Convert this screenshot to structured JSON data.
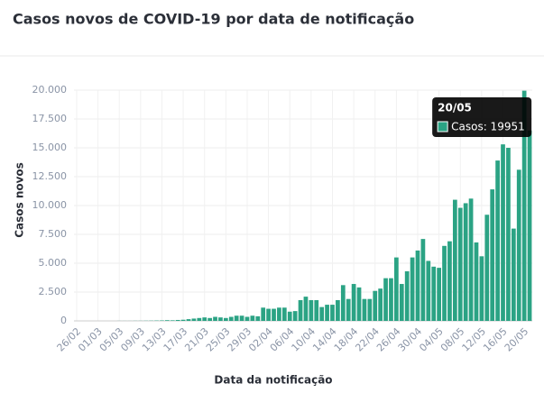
{
  "chart_data": {
    "type": "bar",
    "title": "Casos novos de COVID-19 por data de notificação",
    "y_label": "Casos novos",
    "x_label": "Data da notificação",
    "categories": [
      "26/02",
      null,
      null,
      null,
      "01/03",
      null,
      null,
      null,
      "05/03",
      null,
      null,
      null,
      "09/03",
      null,
      null,
      null,
      "13/03",
      null,
      null,
      null,
      "17/03",
      null,
      null,
      null,
      "21/03",
      null,
      null,
      null,
      "25/03",
      null,
      null,
      null,
      "29/03",
      null,
      null,
      null,
      "02/04",
      null,
      null,
      null,
      "06/04",
      null,
      null,
      null,
      "10/04",
      null,
      null,
      null,
      "14/04",
      null,
      null,
      null,
      "18/04",
      null,
      null,
      null,
      "22/04",
      null,
      null,
      null,
      "26/04",
      null,
      null,
      null,
      "30/04",
      null,
      null,
      null,
      "04/05",
      null,
      null,
      null,
      "08/05",
      null,
      null,
      null,
      "12/05",
      null,
      null,
      null,
      "16/05",
      null,
      null,
      null,
      "20/05",
      null
    ],
    "values": [
      0,
      0,
      0,
      0,
      0,
      0,
      0,
      0,
      5,
      5,
      5,
      10,
      10,
      15,
      20,
      30,
      40,
      60,
      50,
      80,
      100,
      150,
      200,
      250,
      300,
      250,
      350,
      300,
      250,
      350,
      450,
      450,
      350,
      450,
      400,
      1150,
      1050,
      1050,
      1150,
      1150,
      800,
      850,
      1800,
      2100,
      1800,
      1800,
      1200,
      1400,
      1400,
      1800,
      3100,
      1900,
      3200,
      2900,
      1900,
      1900,
      2600,
      2800,
      3700,
      3700,
      5500,
      3200,
      4300,
      5500,
      6100,
      7100,
      5200,
      4700,
      4600,
      6500,
      6900,
      10500,
      9800,
      10200,
      10600,
      6800,
      5600,
      9200,
      11400,
      13900,
      15300,
      15000,
      8000,
      13100,
      19951,
      16500
    ],
    "color": "#2ba384",
    "ylim": [
      0,
      20000
    ],
    "yticks": [
      0,
      {
        "value": 2500,
        "label": "2.500"
      },
      {
        "value": 5000,
        "label": "5.000"
      },
      {
        "value": 7500,
        "label": "7.500"
      },
      {
        "value": 10000,
        "label": "10.000"
      },
      {
        "value": 12500,
        "label": "12.500"
      },
      {
        "value": 15000,
        "label": "15.000"
      },
      {
        "value": 17500,
        "label": "17.500"
      },
      {
        "value": 20000,
        "label": "20.000"
      }
    ],
    "grid": true,
    "tooltip": {
      "index": 84,
      "title": "20/05",
      "text": "Casos: 19951"
    }
  }
}
